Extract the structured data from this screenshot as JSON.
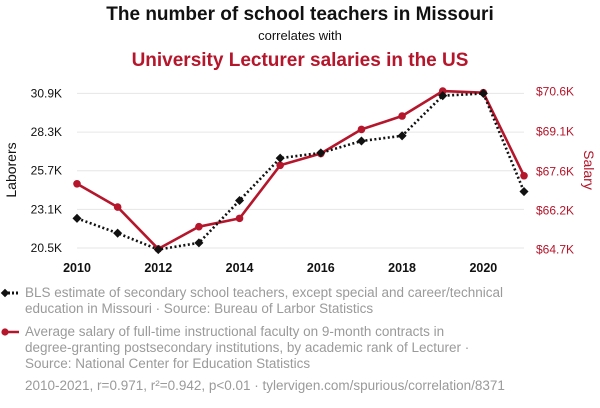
{
  "chart_data": {
    "type": "line",
    "title": "The number of school teachers in Missouri",
    "subtitle": "correlates with",
    "title2": "University Lecturer salaries in the US",
    "x": [
      2010,
      2011,
      2012,
      2013,
      2014,
      2015,
      2016,
      2017,
      2018,
      2019,
      2020,
      2021
    ],
    "x_ticks": [
      "2010",
      "2012",
      "2014",
      "2016",
      "2018",
      "2020"
    ],
    "left_axis": {
      "label": "Laborers",
      "ticks": [
        "20.5K",
        "23.1K",
        "25.7K",
        "28.3K",
        "30.9K"
      ],
      "tick_values": [
        20500,
        23100,
        25700,
        28300,
        30900
      ],
      "range": [
        20100,
        31400
      ]
    },
    "right_axis": {
      "label": "Salary",
      "ticks": [
        "$64.7K",
        "$66.2K",
        "$67.6K",
        "$69.1K",
        "$70.6K"
      ],
      "tick_values": [
        64700,
        66150,
        67600,
        69100,
        70600
      ],
      "range": [
        64530,
        70800
      ]
    },
    "series": [
      {
        "name": "Teachers",
        "axis": "left",
        "color": "#111111",
        "style": "dotted",
        "marker": "diamond",
        "values": [
          22500,
          21500,
          20400,
          20850,
          23700,
          26550,
          26900,
          27700,
          28050,
          30750,
          30900,
          24300
        ],
        "legend": [
          "BLS estimate of secondary school teachers, except special and career/technical",
          "education in Missouri · Source: Bureau of Larbor Statistics"
        ]
      },
      {
        "name": "Lecturer salary",
        "axis": "right",
        "color": "#b5162b",
        "style": "solid",
        "marker": "circle",
        "values": [
          67150,
          66280,
          64720,
          65550,
          65860,
          67840,
          68280,
          69180,
          69680,
          70610,
          70550,
          67450
        ],
        "legend": [
          "Average salary of full-time instructional faculty on 9-month contracts in",
          "degree-granting postsecondary institutions, by academic rank of Lecturer ·",
          "Source: National Center for Education Statistics"
        ]
      }
    ]
  },
  "footer": "2010-2021, r=0.971, r²=0.942, p<0.01 · tylervigen.com/spurious/correlation/8371"
}
